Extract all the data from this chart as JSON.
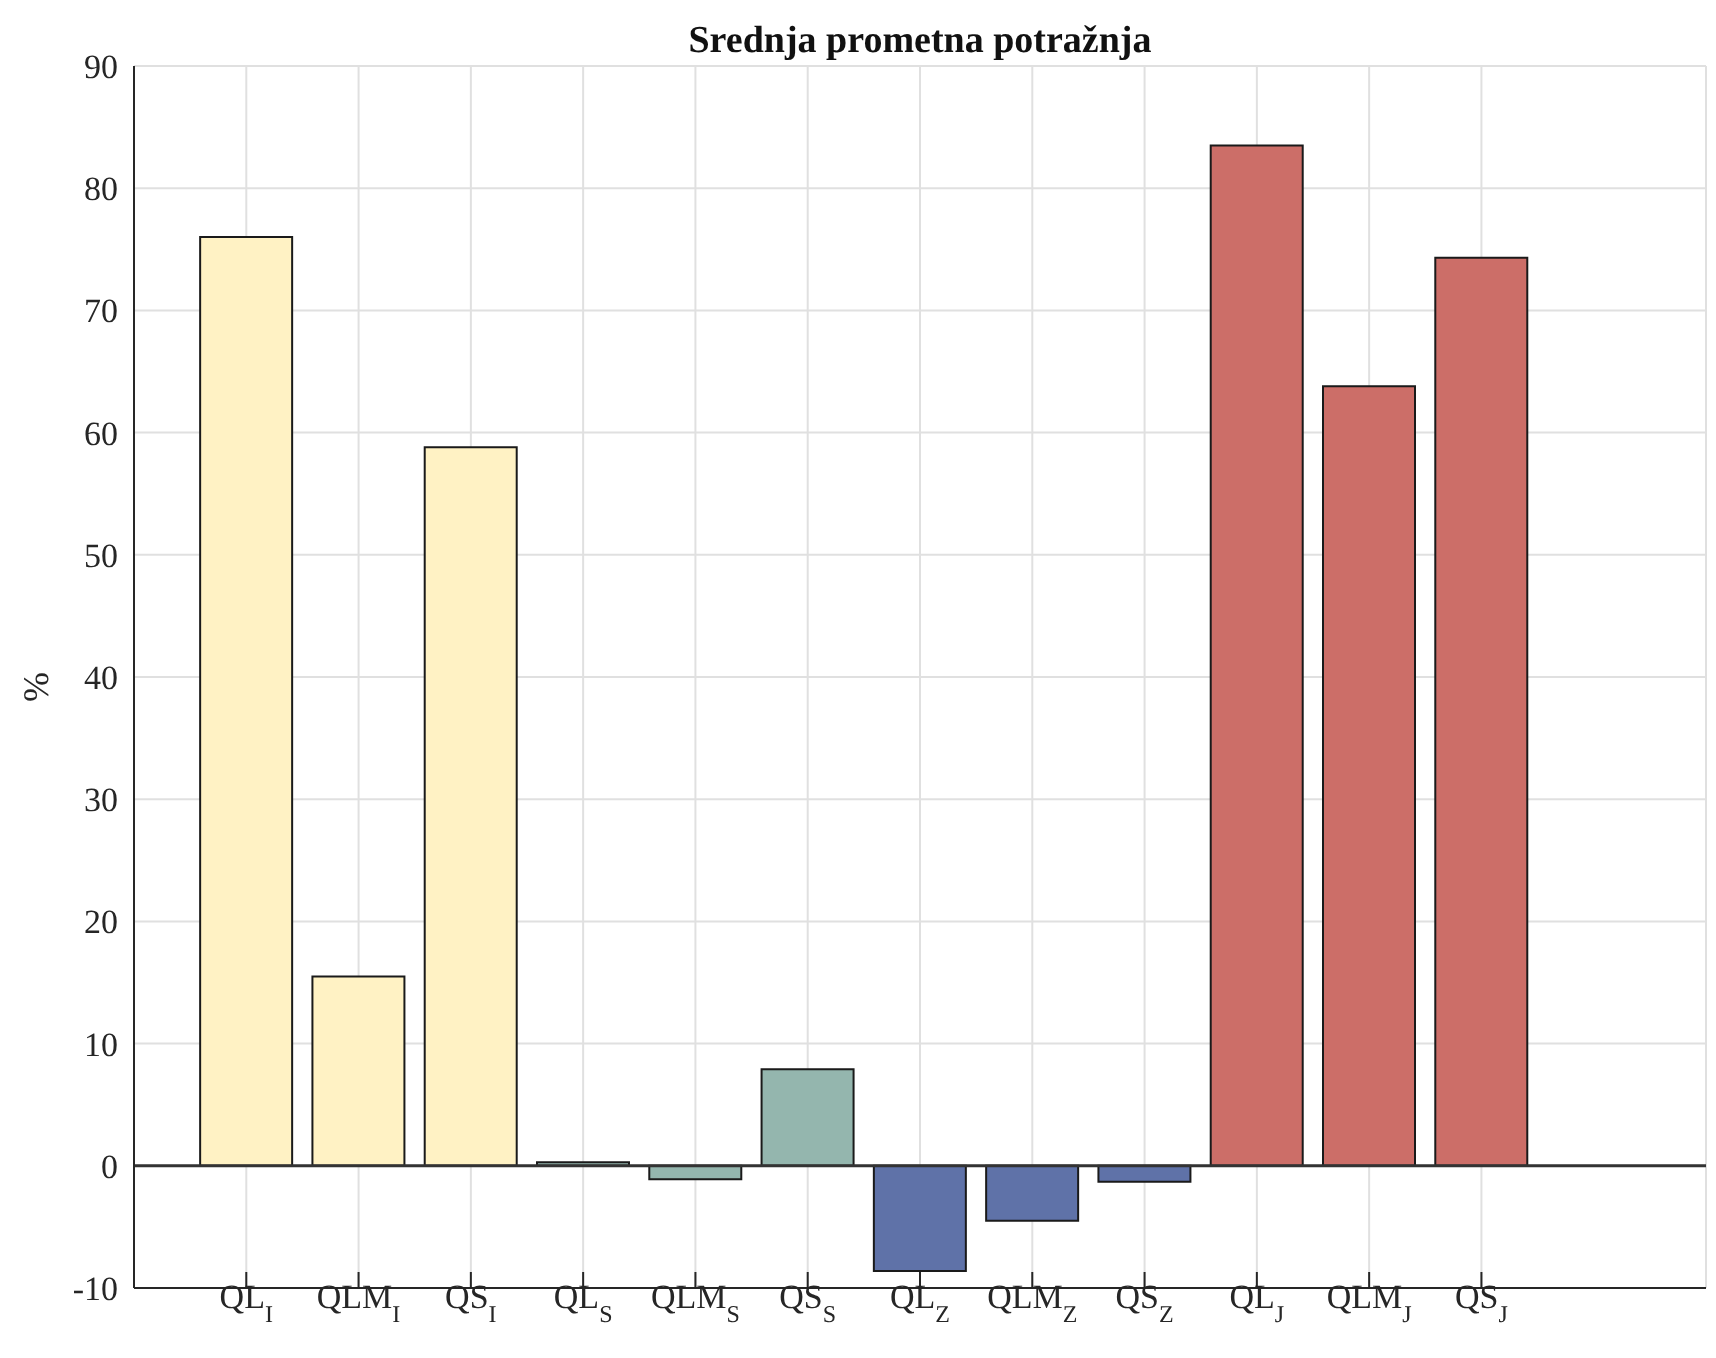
{
  "chart_data": {
    "type": "bar",
    "title": "Srednja prometna potražnja",
    "ylabel": "%",
    "categories": [
      "QL$_{I}$",
      "QLM$_{I}$",
      "QS$_{I}$",
      "QL$_{S}$",
      "QLM$_{S}$",
      "QS$_{S}$",
      "QL$_{Z}$",
      "QLM$_{Z}$",
      "QS$_{Z}$",
      "QL$_{J}$",
      "QLM$_{J}$",
      "QS$_{J}$"
    ],
    "values": [
      76,
      15.5,
      58.8,
      0.3,
      -1.1,
      7.9,
      -8.6,
      -4.5,
      -1.3,
      83.5,
      63.8,
      74.3
    ],
    "colors": [
      "#fff2c4",
      "#fff2c4",
      "#fff2c4",
      "#94b6ae",
      "#94b6ae",
      "#94b6ae",
      "#5f72a8",
      "#5f72a8",
      "#5f72a8",
      "#cc6e68",
      "#cc6e68",
      "#cc6e68"
    ],
    "ylim": [
      -10,
      90
    ],
    "yticks": [
      -10,
      0,
      10,
      20,
      30,
      40,
      50,
      60,
      70,
      80,
      90
    ],
    "grid": true,
    "ref_lines": [
      {
        "axis": "y",
        "value": 0,
        "color": "#333333"
      }
    ]
  }
}
